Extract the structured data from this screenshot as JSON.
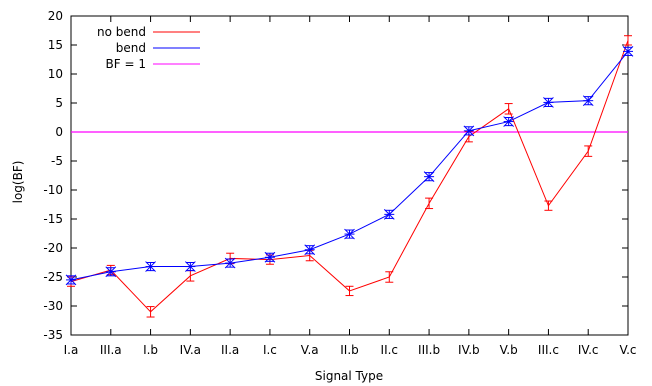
{
  "chart_data": {
    "type": "line",
    "xlabel": "Signal Type",
    "ylabel": "log(BF)",
    "ylim": [
      -35,
      20
    ],
    "yticks": [
      -35,
      -30,
      -25,
      -20,
      -15,
      -10,
      -5,
      0,
      5,
      10,
      15,
      20
    ],
    "categories": [
      "I.a",
      "III.a",
      "I.b",
      "IV.a",
      "II.a",
      "I.c",
      "V.a",
      "II.b",
      "II.c",
      "III.b",
      "IV.b",
      "V.b",
      "III.c",
      "IV.c",
      "V.c"
    ],
    "legend_position": "top-left",
    "grid": false,
    "series": [
      {
        "name": "no bend",
        "color": "#ff0000",
        "marker": "errorbar",
        "values": [
          -25.8,
          -23.8,
          -31.0,
          -24.8,
          -21.8,
          -22.0,
          -21.3,
          -27.4,
          -25.0,
          -12.3,
          -0.8,
          4.0,
          -12.7,
          -3.3,
          15.8
        ],
        "errors": [
          0.8,
          0.8,
          0.9,
          0.9,
          0.9,
          0.8,
          0.9,
          0.8,
          0.9,
          0.9,
          0.9,
          0.9,
          0.8,
          0.9,
          0.8
        ]
      },
      {
        "name": "bend",
        "color": "#0000ff",
        "marker": "star-errorbar",
        "values": [
          -25.5,
          -24.1,
          -23.2,
          -23.2,
          -22.6,
          -21.6,
          -20.3,
          -17.6,
          -14.2,
          -7.7,
          0.2,
          1.8,
          5.1,
          5.4,
          13.9
        ],
        "errors": [
          0.7,
          0.7,
          0.7,
          0.7,
          0.7,
          0.7,
          0.7,
          0.7,
          0.7,
          0.7,
          0.7,
          0.7,
          0.7,
          0.7,
          0.7
        ]
      },
      {
        "name": "BF = 1",
        "color": "#ff00ff",
        "constant": 0
      }
    ]
  }
}
